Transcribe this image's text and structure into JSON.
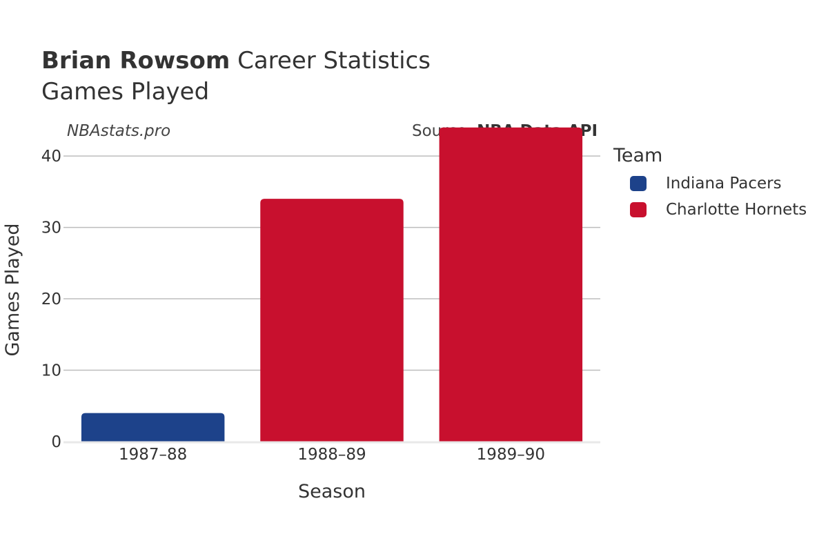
{
  "header": {
    "player_name": "Brian Rowsom",
    "title_suffix": "Career Statistics",
    "subtitle": "Games Played",
    "watermark": "NBAstats.pro",
    "source_prefix": "Source:",
    "source_name": "NBA Data API"
  },
  "legend": {
    "title": "Team",
    "items": [
      {
        "label": "Indiana Pacers",
        "color": "#1d428a"
      },
      {
        "label": "Charlotte Hornets",
        "color": "#c8102e"
      }
    ]
  },
  "chart_data": {
    "type": "bar",
    "categories": [
      "1987–88",
      "1988–89",
      "1989–90"
    ],
    "values": [
      4,
      34,
      44
    ],
    "teams": [
      "Indiana Pacers",
      "Charlotte Hornets",
      "Charlotte Hornets"
    ],
    "colors": [
      "#1d428a",
      "#c8102e",
      "#c8102e"
    ],
    "xlabel": "Season",
    "ylabel": "Games Played",
    "ylim": [
      0,
      46
    ],
    "yticks": [
      0,
      10,
      20,
      30,
      40
    ],
    "grid": true,
    "legend_position": "right"
  }
}
